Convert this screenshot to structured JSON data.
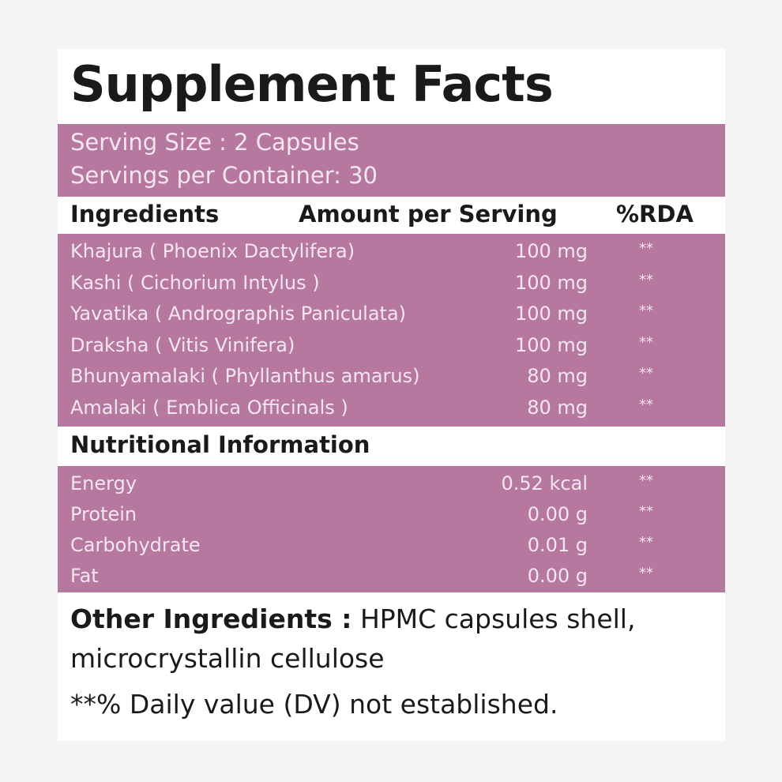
{
  "title": "Supplement Facts",
  "serving": [
    "Serving Size : 2 Capsules",
    "Servings per Container: 30"
  ],
  "header": [
    "Ingredients",
    "Amount per Serving",
    "%RDA"
  ],
  "ingredients": [
    [
      "Khajura ( Phoenix Dactylifera)",
      "100 mg",
      "**"
    ],
    [
      "Kashi ( Cichorium Intylus )",
      "100 mg",
      "**"
    ],
    [
      "Yavatika ( Andrographis Paniculata)",
      "100 mg",
      "**"
    ],
    [
      "Draksha ( Vitis Vinifera)",
      "100 mg",
      "**"
    ],
    [
      "Bhunyamalaki ( Phyllanthus amarus)",
      "80 mg",
      "**"
    ],
    [
      "Amalaki ( Emblica Officinals )",
      "80 mg",
      "**"
    ]
  ],
  "nutrition_title": "Nutritional Information",
  "nutrition": [
    [
      "Energy",
      "0.52 kcal",
      "**"
    ],
    [
      "Protein",
      "0.00 g",
      "**"
    ],
    [
      "Carbohydrate",
      "0.01 g",
      "**"
    ],
    [
      "Fat",
      "0.00 g",
      "**"
    ]
  ],
  "other_label": "Other Ingredients :",
  "other_text": "HPMC capsules shell, microcrystallin cellulose",
  "footnote": "**% Daily value (DV) not established."
}
